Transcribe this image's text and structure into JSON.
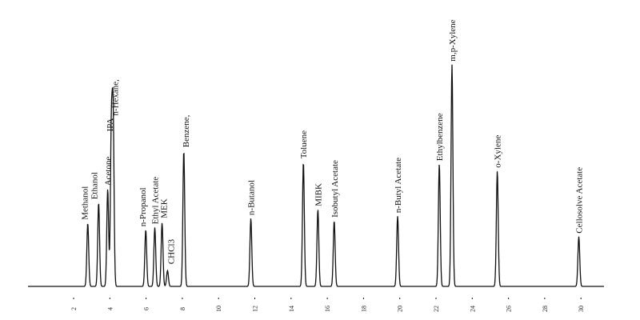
{
  "chart_data": {
    "type": "line",
    "title": "",
    "xlabel": "",
    "ylabel": "",
    "xlim": [
      0,
      32
    ],
    "ylim": [
      0,
      100
    ],
    "grid": false,
    "x_ticks": [
      2,
      4,
      6,
      8,
      10,
      12,
      14,
      16,
      18,
      20,
      22,
      24,
      26,
      28,
      30
    ],
    "peaks": [
      {
        "name": "Methanol",
        "x": 3.4,
        "height": 28
      },
      {
        "name": "Ethanol",
        "x": 4.0,
        "height": 37
      },
      {
        "name": "Acetone",
        "x": 4.5,
        "height": 43
      },
      {
        "name": "IPA",
        "x": 4.7,
        "height": 67
      },
      {
        "name": "n-Hexane,",
        "x": 4.8,
        "height": 74
      },
      {
        "name": "n-Propanol",
        "x": 6.6,
        "height": 25
      },
      {
        "name": "Ethyl Acetate",
        "x": 7.1,
        "height": 26
      },
      {
        "name": "MEK",
        "x": 7.5,
        "height": 28
      },
      {
        "name": "CHCl3",
        "x": 7.8,
        "height": 7
      },
      {
        "name": "Benzene,",
        "x": 8.7,
        "height": 60
      },
      {
        "name": "n-Butanol",
        "x": 12.4,
        "height": 30
      },
      {
        "name": "Toluene",
        "x": 15.3,
        "height": 55
      },
      {
        "name": "MIBK",
        "x": 16.1,
        "height": 34
      },
      {
        "name": "Isobutyl Acetate",
        "x": 17.0,
        "height": 29
      },
      {
        "name": "n-Butyl Acetate",
        "x": 20.5,
        "height": 31
      },
      {
        "name": "Ethylbenzene",
        "x": 22.8,
        "height": 54
      },
      {
        "name": "m,p-Xylene",
        "x": 23.5,
        "height": 98
      },
      {
        "name": "o-Xylene",
        "x": 26.0,
        "height": 51
      },
      {
        "name": "Cellosolve Acetate",
        "x": 30.5,
        "height": 22
      }
    ]
  }
}
